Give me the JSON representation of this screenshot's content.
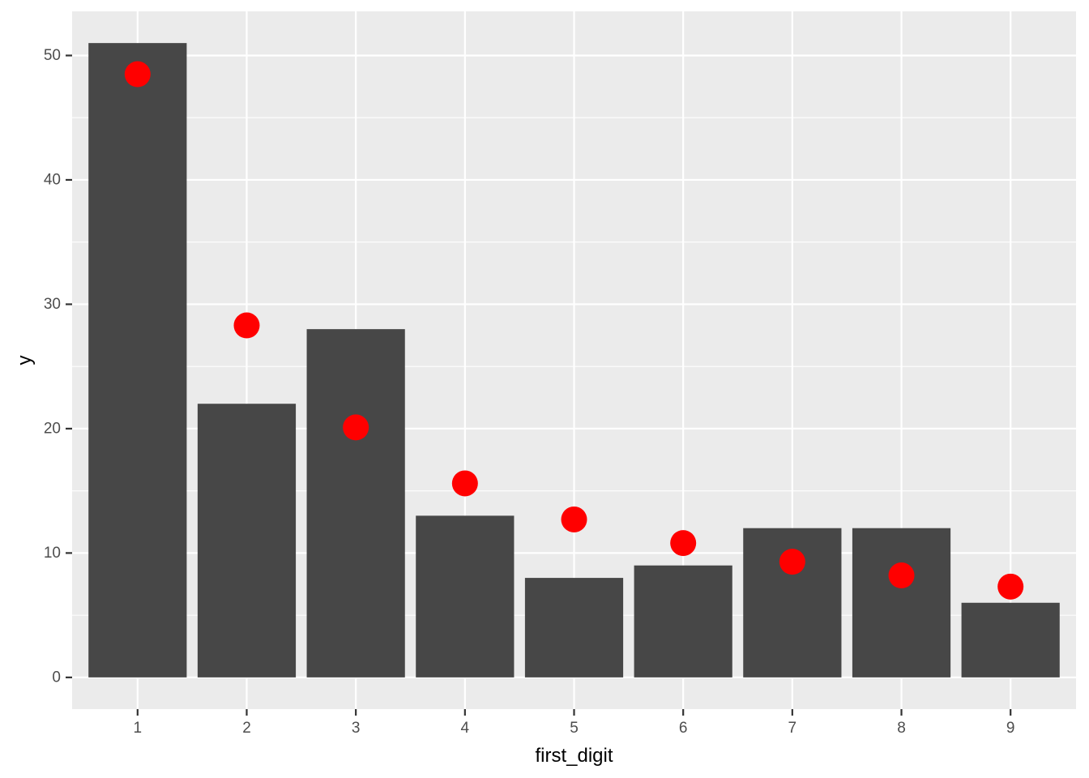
{
  "chart_data": {
    "type": "bar",
    "title": "",
    "xlabel": "first_digit",
    "ylabel": "y",
    "categories": [
      "1",
      "2",
      "3",
      "4",
      "5",
      "6",
      "7",
      "8",
      "9"
    ],
    "series": [
      {
        "type": "bar",
        "values": [
          51,
          22,
          28,
          13,
          8,
          9,
          12,
          12,
          6
        ]
      },
      {
        "type": "point",
        "values": [
          48.5,
          28.3,
          20.1,
          15.6,
          12.7,
          10.8,
          9.3,
          8.2,
          7.3
        ]
      }
    ],
    "ylim": [
      -2.55,
      53.55
    ],
    "yticks": [
      "0",
      "10",
      "20",
      "30",
      "40",
      "50"
    ],
    "grid": true,
    "colors": {
      "panel_background": "#ebebeb",
      "grid_major": "#ffffff",
      "bar_fill": "#474747",
      "point_fill": "#ff0000",
      "tick_text": "#4d4d4d",
      "tick_mark": "#333333",
      "axis_title": "#000000"
    }
  }
}
